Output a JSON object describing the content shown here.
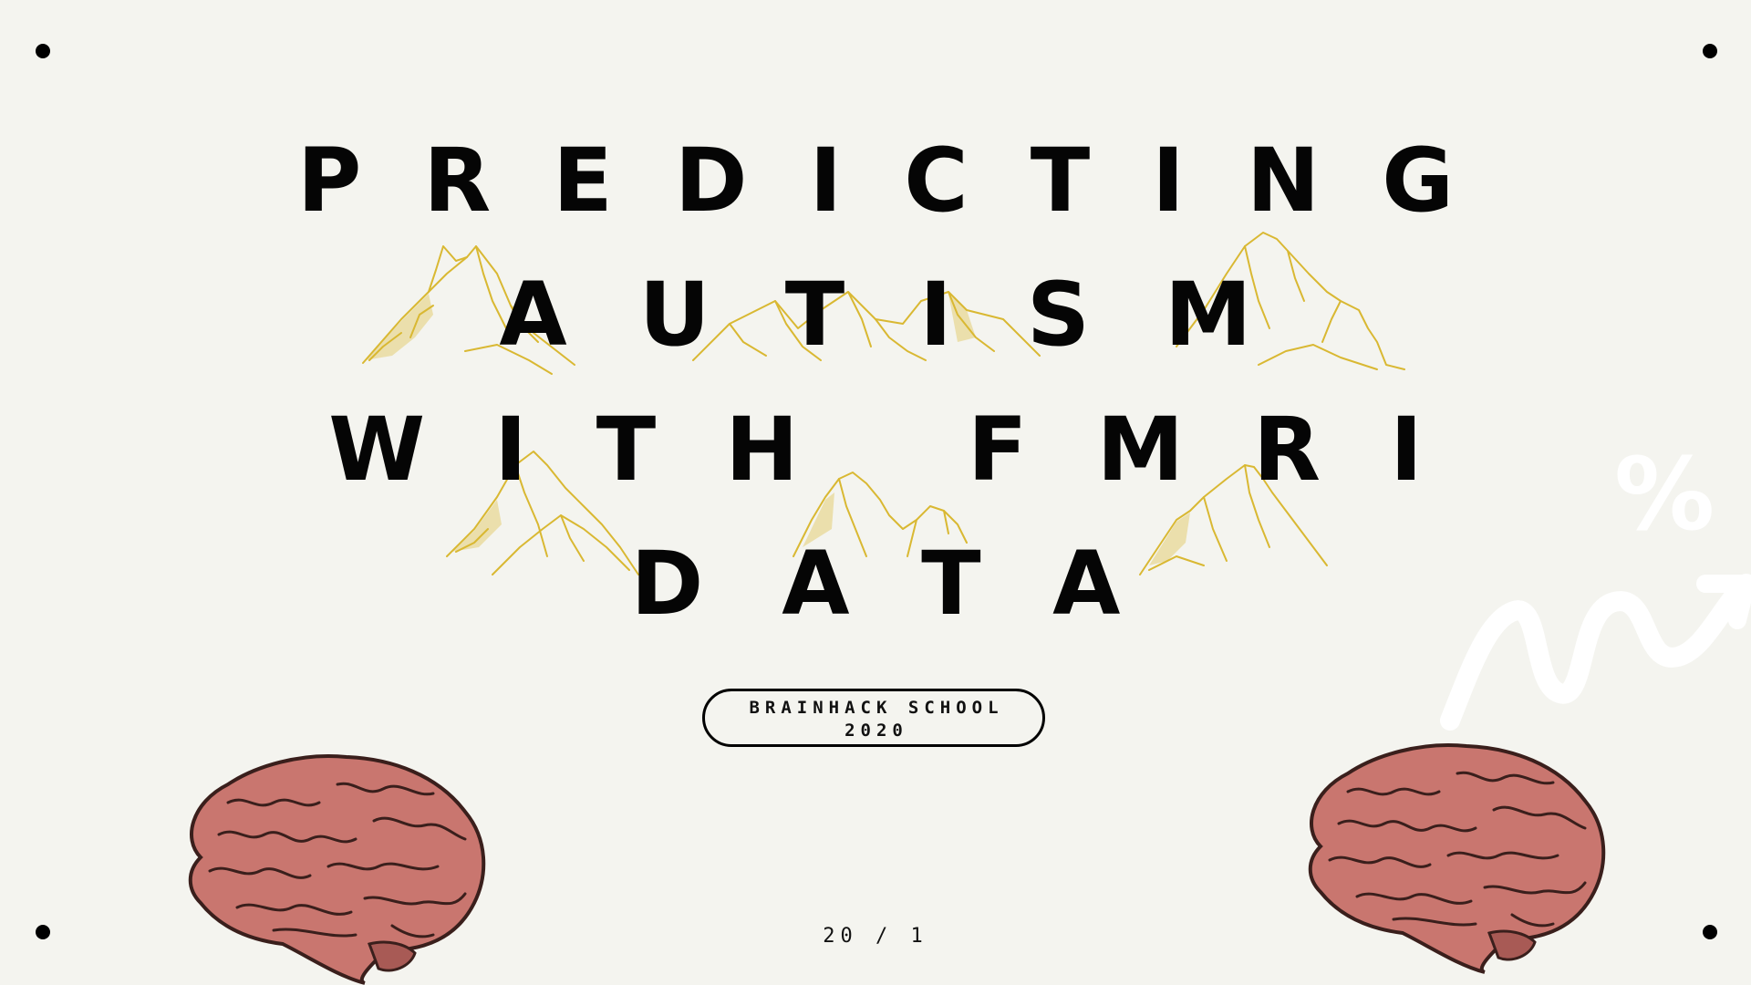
{
  "title": {
    "lines": [
      "PREDICTING",
      "AUTISM",
      "WITH FMRI",
      "DATA"
    ]
  },
  "badge": {
    "line1": "BRAINHACK SCHOOL",
    "line2": "2020"
  },
  "page_number": "20 / 1",
  "decoration": {
    "percent_symbol": "%"
  },
  "colors": {
    "background": "#f4f4ef",
    "text": "#050505",
    "mountain": "#d9b832",
    "brain": "#c9766f",
    "brain_outline": "#3a1f1c",
    "decor": "#ffffff"
  }
}
